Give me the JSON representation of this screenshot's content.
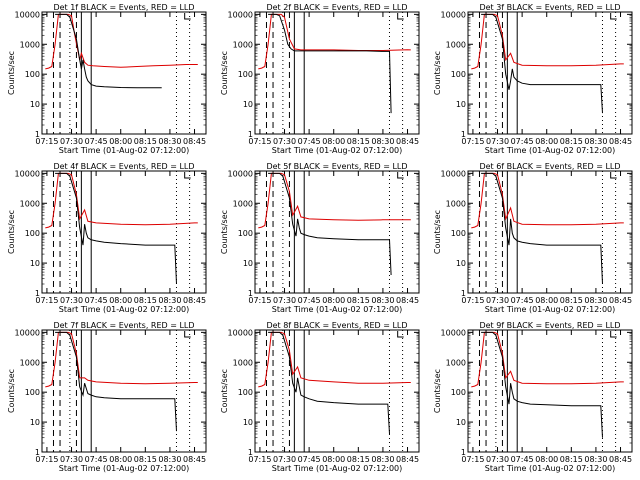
{
  "figure": {
    "xlabel": "Start Time (01-Aug-02 07:12:00)",
    "ylabel": "Counts/sec",
    "x_tick_labels": [
      "07:15",
      "07:30",
      "07:45",
      "08:00",
      "08:15",
      "08:30",
      "08:45"
    ],
    "y_tick_labels": [
      "1",
      "10",
      "100",
      "1000",
      "10000"
    ],
    "event_color": "#000000",
    "lld_color": "#dd0000"
  },
  "chart_data": [
    {
      "type": "line",
      "title": "Det 1f BLACK = Events, RED = LLD",
      "xlabel": "Start Time (01-Aug-02 07:12:00)",
      "ylabel": "Counts/sec",
      "xlim": [
        "07:12",
        "08:52"
      ],
      "ylim": [
        1,
        12000
      ],
      "yscale": "log",
      "series": [
        {
          "color": "#000000",
          "x": [
            "07:20",
            "07:22",
            "07:23",
            "07:25",
            "07:27",
            "07:29",
            "07:33",
            "07:35",
            "07:36",
            "07:37",
            "07:38",
            "07:39",
            "07:40",
            "07:42",
            "07:45",
            "07:50",
            "08:00",
            "08:10",
            "08:20",
            "08:25"
          ],
          "values": [
            10000,
            10000,
            10000,
            10000,
            10000,
            8000,
            1500,
            300,
            150,
            300,
            150,
            80,
            60,
            45,
            40,
            38,
            36,
            35,
            35,
            35
          ]
        },
        {
          "color": "#dd0000",
          "x": [
            "07:14",
            "07:16",
            "07:18",
            "07:20",
            "07:22",
            "07:25",
            "07:28",
            "07:30",
            "07:32",
            "07:35",
            "07:36",
            "07:38",
            "07:40",
            "07:43",
            "07:50",
            "08:00",
            "08:10",
            "08:20",
            "08:30",
            "08:40",
            "08:47"
          ],
          "values": [
            150,
            160,
            180,
            1000,
            10000,
            10000,
            10000,
            9000,
            2000,
            300,
            500,
            250,
            200,
            190,
            180,
            170,
            180,
            190,
            200,
            210,
            210
          ]
        }
      ]
    },
    {
      "type": "line",
      "title": "Det 2f BLACK = Events, RED = LLD",
      "xlabel": "Start Time (01-Aug-02 07:12:00)",
      "ylabel": "Counts/sec",
      "xlim": [
        "07:12",
        "08:52"
      ],
      "ylim": [
        1,
        12000
      ],
      "yscale": "log",
      "series": [
        {
          "color": "#000000",
          "x": [
            "07:20",
            "07:22",
            "07:25",
            "07:27",
            "07:30",
            "07:32",
            "07:34",
            "07:36",
            "07:40",
            "07:45",
            "07:50",
            "08:00",
            "08:10",
            "08:20",
            "08:30",
            "08:34",
            "08:35"
          ],
          "values": [
            10000,
            10000,
            10000,
            9000,
            3000,
            1000,
            700,
            600,
            600,
            600,
            600,
            600,
            600,
            600,
            580,
            580,
            5
          ]
        },
        {
          "color": "#dd0000",
          "x": [
            "07:14",
            "07:16",
            "07:18",
            "07:20",
            "07:22",
            "07:25",
            "07:28",
            "07:30",
            "07:33",
            "07:36",
            "07:40",
            "07:45",
            "08:00",
            "08:15",
            "08:30",
            "08:45",
            "08:47"
          ],
          "values": [
            150,
            160,
            180,
            1000,
            10000,
            10000,
            10000,
            8000,
            1500,
            700,
            650,
            650,
            650,
            620,
            620,
            660,
            650
          ]
        }
      ]
    },
    {
      "type": "line",
      "title": "Det 3f BLACK = Events, RED = LLD",
      "xlabel": "Start Time (01-Aug-02 07:12:00)",
      "ylabel": "Counts/sec",
      "xlim": [
        "07:12",
        "08:52"
      ],
      "ylim": [
        1,
        12000
      ],
      "yscale": "log",
      "series": [
        {
          "color": "#000000",
          "x": [
            "07:20",
            "07:22",
            "07:25",
            "07:27",
            "07:29",
            "07:33",
            "07:35",
            "07:37",
            "07:38",
            "07:39",
            "07:40",
            "07:42",
            "07:45",
            "07:50",
            "08:00",
            "08:15",
            "08:30",
            "08:33",
            "08:34"
          ],
          "values": [
            10000,
            10000,
            10000,
            10000,
            8000,
            1500,
            100,
            30,
            60,
            150,
            80,
            60,
            50,
            45,
            45,
            45,
            45,
            45,
            5
          ]
        },
        {
          "color": "#dd0000",
          "x": [
            "07:14",
            "07:16",
            "07:18",
            "07:20",
            "07:22",
            "07:25",
            "07:28",
            "07:30",
            "07:33",
            "07:35",
            "07:38",
            "07:40",
            "07:45",
            "08:00",
            "08:15",
            "08:30",
            "08:45",
            "08:47"
          ],
          "values": [
            150,
            160,
            180,
            1000,
            10000,
            10000,
            10000,
            9000,
            2000,
            300,
            500,
            250,
            200,
            190,
            190,
            200,
            220,
            220
          ]
        }
      ]
    },
    {
      "type": "line",
      "title": "Det 4f BLACK = Events, RED = LLD",
      "xlabel": "Start Time (01-Aug-02 07:12:00)",
      "ylabel": "Counts/sec",
      "xlim": [
        "07:12",
        "08:52"
      ],
      "ylim": [
        1,
        12000
      ],
      "yscale": "log",
      "series": [
        {
          "color": "#000000",
          "x": [
            "07:20",
            "07:22",
            "07:25",
            "07:27",
            "07:29",
            "07:33",
            "07:35",
            "07:37",
            "07:38",
            "07:39",
            "07:40",
            "07:42",
            "07:45",
            "07:50",
            "08:00",
            "08:15",
            "08:30",
            "08:33",
            "08:34"
          ],
          "values": [
            10000,
            10000,
            10000,
            10000,
            8000,
            1500,
            150,
            40,
            200,
            100,
            70,
            60,
            55,
            50,
            45,
            40,
            40,
            40,
            2
          ]
        },
        {
          "color": "#dd0000",
          "x": [
            "07:14",
            "07:16",
            "07:18",
            "07:20",
            "07:22",
            "07:25",
            "07:28",
            "07:30",
            "07:33",
            "07:35",
            "07:38",
            "07:40",
            "07:45",
            "08:00",
            "08:15",
            "08:30",
            "08:45",
            "08:47"
          ],
          "values": [
            150,
            160,
            180,
            1000,
            10000,
            10000,
            10000,
            9000,
            2000,
            300,
            600,
            250,
            220,
            200,
            190,
            200,
            220,
            220
          ]
        }
      ]
    },
    {
      "type": "line",
      "title": "Det 5f BLACK = Events, RED = LLD",
      "xlabel": "Start Time (01-Aug-02 07:12:00)",
      "ylabel": "Counts/sec",
      "xlim": [
        "07:12",
        "08:52"
      ],
      "ylim": [
        1,
        12000
      ],
      "yscale": "log",
      "series": [
        {
          "color": "#000000",
          "x": [
            "07:20",
            "07:22",
            "07:25",
            "07:27",
            "07:29",
            "07:33",
            "07:35",
            "07:37",
            "07:38",
            "07:39",
            "07:40",
            "07:42",
            "07:45",
            "07:50",
            "08:00",
            "08:15",
            "08:30",
            "08:34",
            "08:35"
          ],
          "values": [
            10000,
            10000,
            10000,
            10000,
            8000,
            1500,
            200,
            80,
            300,
            150,
            100,
            90,
            80,
            70,
            65,
            60,
            60,
            60,
            4
          ]
        },
        {
          "color": "#dd0000",
          "x": [
            "07:14",
            "07:16",
            "07:18",
            "07:20",
            "07:22",
            "07:25",
            "07:28",
            "07:30",
            "07:33",
            "07:35",
            "07:38",
            "07:40",
            "07:45",
            "08:00",
            "08:15",
            "08:30",
            "08:45",
            "08:47"
          ],
          "values": [
            150,
            160,
            180,
            1000,
            10000,
            10000,
            10000,
            9000,
            2500,
            400,
            800,
            350,
            300,
            280,
            270,
            280,
            280,
            280
          ]
        }
      ]
    },
    {
      "type": "line",
      "title": "Det 6f BLACK = Events, RED = LLD",
      "xlabel": "Start Time (01-Aug-02 07:12:00)",
      "ylabel": "Counts/sec",
      "xlim": [
        "07:12",
        "08:52"
      ],
      "ylim": [
        1,
        12000
      ],
      "yscale": "log",
      "series": [
        {
          "color": "#000000",
          "x": [
            "07:20",
            "07:22",
            "07:25",
            "07:27",
            "07:29",
            "07:33",
            "07:35",
            "07:37",
            "07:38",
            "07:39",
            "07:40",
            "07:42",
            "07:45",
            "07:50",
            "08:00",
            "08:15",
            "08:30",
            "08:33",
            "08:34"
          ],
          "values": [
            10000,
            10000,
            10000,
            10000,
            8000,
            1500,
            150,
            40,
            300,
            100,
            70,
            55,
            50,
            45,
            40,
            40,
            40,
            40,
            2
          ]
        },
        {
          "color": "#dd0000",
          "x": [
            "07:14",
            "07:16",
            "07:18",
            "07:20",
            "07:22",
            "07:25",
            "07:28",
            "07:30",
            "07:33",
            "07:35",
            "07:38",
            "07:40",
            "07:45",
            "08:00",
            "08:15",
            "08:30",
            "08:45",
            "08:47"
          ],
          "values": [
            150,
            160,
            180,
            1000,
            10000,
            10000,
            10000,
            9000,
            2000,
            300,
            700,
            250,
            200,
            190,
            190,
            200,
            220,
            220
          ]
        }
      ]
    },
    {
      "type": "line",
      "title": "Det 7f BLACK = Events, RED = LLD",
      "xlabel": "Start Time (01-Aug-02 07:12:00)",
      "ylabel": "Counts/sec",
      "xlim": [
        "07:12",
        "08:52"
      ],
      "ylim": [
        1,
        12000
      ],
      "yscale": "log",
      "series": [
        {
          "color": "#000000",
          "x": [
            "07:20",
            "07:22",
            "07:25",
            "07:27",
            "07:29",
            "07:33",
            "07:35",
            "07:37",
            "07:38",
            "07:40",
            "07:42",
            "07:45",
            "07:50",
            "08:00",
            "08:15",
            "08:30",
            "08:33",
            "08:34"
          ],
          "values": [
            10000,
            10000,
            10000,
            10000,
            8000,
            1500,
            150,
            80,
            200,
            90,
            80,
            70,
            65,
            60,
            60,
            60,
            60,
            5
          ]
        },
        {
          "color": "#dd0000",
          "x": [
            "07:14",
            "07:16",
            "07:18",
            "07:20",
            "07:22",
            "07:25",
            "07:28",
            "07:30",
            "07:33",
            "07:35",
            "07:38",
            "07:40",
            "07:45",
            "08:00",
            "08:15",
            "08:30",
            "08:45",
            "08:47"
          ],
          "values": [
            150,
            160,
            180,
            1000,
            10000,
            10000,
            10000,
            9000,
            2000,
            300,
            300,
            250,
            220,
            200,
            190,
            200,
            210,
            210
          ]
        }
      ]
    },
    {
      "type": "line",
      "title": "Det 8f BLACK = Events, RED = LLD",
      "xlabel": "Start Time (01-Aug-02 07:12:00)",
      "ylabel": "Counts/sec",
      "xlim": [
        "07:12",
        "08:52"
      ],
      "ylim": [
        1,
        12000
      ],
      "yscale": "log",
      "series": [
        {
          "color": "#000000",
          "x": [
            "07:20",
            "07:22",
            "07:25",
            "07:27",
            "07:29",
            "07:33",
            "07:35",
            "07:37",
            "07:38",
            "07:39",
            "07:40",
            "07:42",
            "07:45",
            "07:50",
            "08:00",
            "08:15",
            "08:30",
            "08:33",
            "08:34"
          ],
          "values": [
            10000,
            10000,
            10000,
            10000,
            8000,
            1500,
            200,
            100,
            300,
            150,
            80,
            70,
            60,
            50,
            45,
            40,
            40,
            40,
            4
          ]
        },
        {
          "color": "#dd0000",
          "x": [
            "07:14",
            "07:16",
            "07:18",
            "07:20",
            "07:22",
            "07:25",
            "07:28",
            "07:30",
            "07:33",
            "07:35",
            "07:38",
            "07:40",
            "07:45",
            "08:00",
            "08:15",
            "08:30",
            "08:45",
            "08:47"
          ],
          "values": [
            150,
            160,
            180,
            1000,
            10000,
            10000,
            10000,
            9000,
            2500,
            400,
            700,
            300,
            250,
            220,
            200,
            200,
            210,
            210
          ]
        }
      ]
    },
    {
      "type": "line",
      "title": "Det 9f BLACK = Events, RED = LLD",
      "xlabel": "Start Time (01-Aug-02 07:12:00)",
      "ylabel": "Counts/sec",
      "xlim": [
        "07:12",
        "08:52"
      ],
      "ylim": [
        1,
        12000
      ],
      "yscale": "log",
      "series": [
        {
          "color": "#000000",
          "x": [
            "07:20",
            "07:22",
            "07:25",
            "07:27",
            "07:29",
            "07:33",
            "07:35",
            "07:37",
            "07:38",
            "07:39",
            "07:40",
            "07:42",
            "07:45",
            "07:50",
            "08:00",
            "08:15",
            "08:30",
            "08:33",
            "08:34"
          ],
          "values": [
            10000,
            10000,
            10000,
            10000,
            8000,
            1500,
            150,
            40,
            200,
            100,
            60,
            50,
            45,
            40,
            38,
            35,
            35,
            35,
            3
          ]
        },
        {
          "color": "#dd0000",
          "x": [
            "07:14",
            "07:16",
            "07:18",
            "07:20",
            "07:22",
            "07:25",
            "07:28",
            "07:30",
            "07:33",
            "07:35",
            "07:38",
            "07:40",
            "07:45",
            "08:00",
            "08:15",
            "08:30",
            "08:45",
            "08:47"
          ],
          "values": [
            150,
            160,
            180,
            1000,
            10000,
            10000,
            10000,
            9000,
            2000,
            300,
            500,
            250,
            200,
            190,
            190,
            200,
            220,
            220
          ]
        }
      ]
    }
  ]
}
